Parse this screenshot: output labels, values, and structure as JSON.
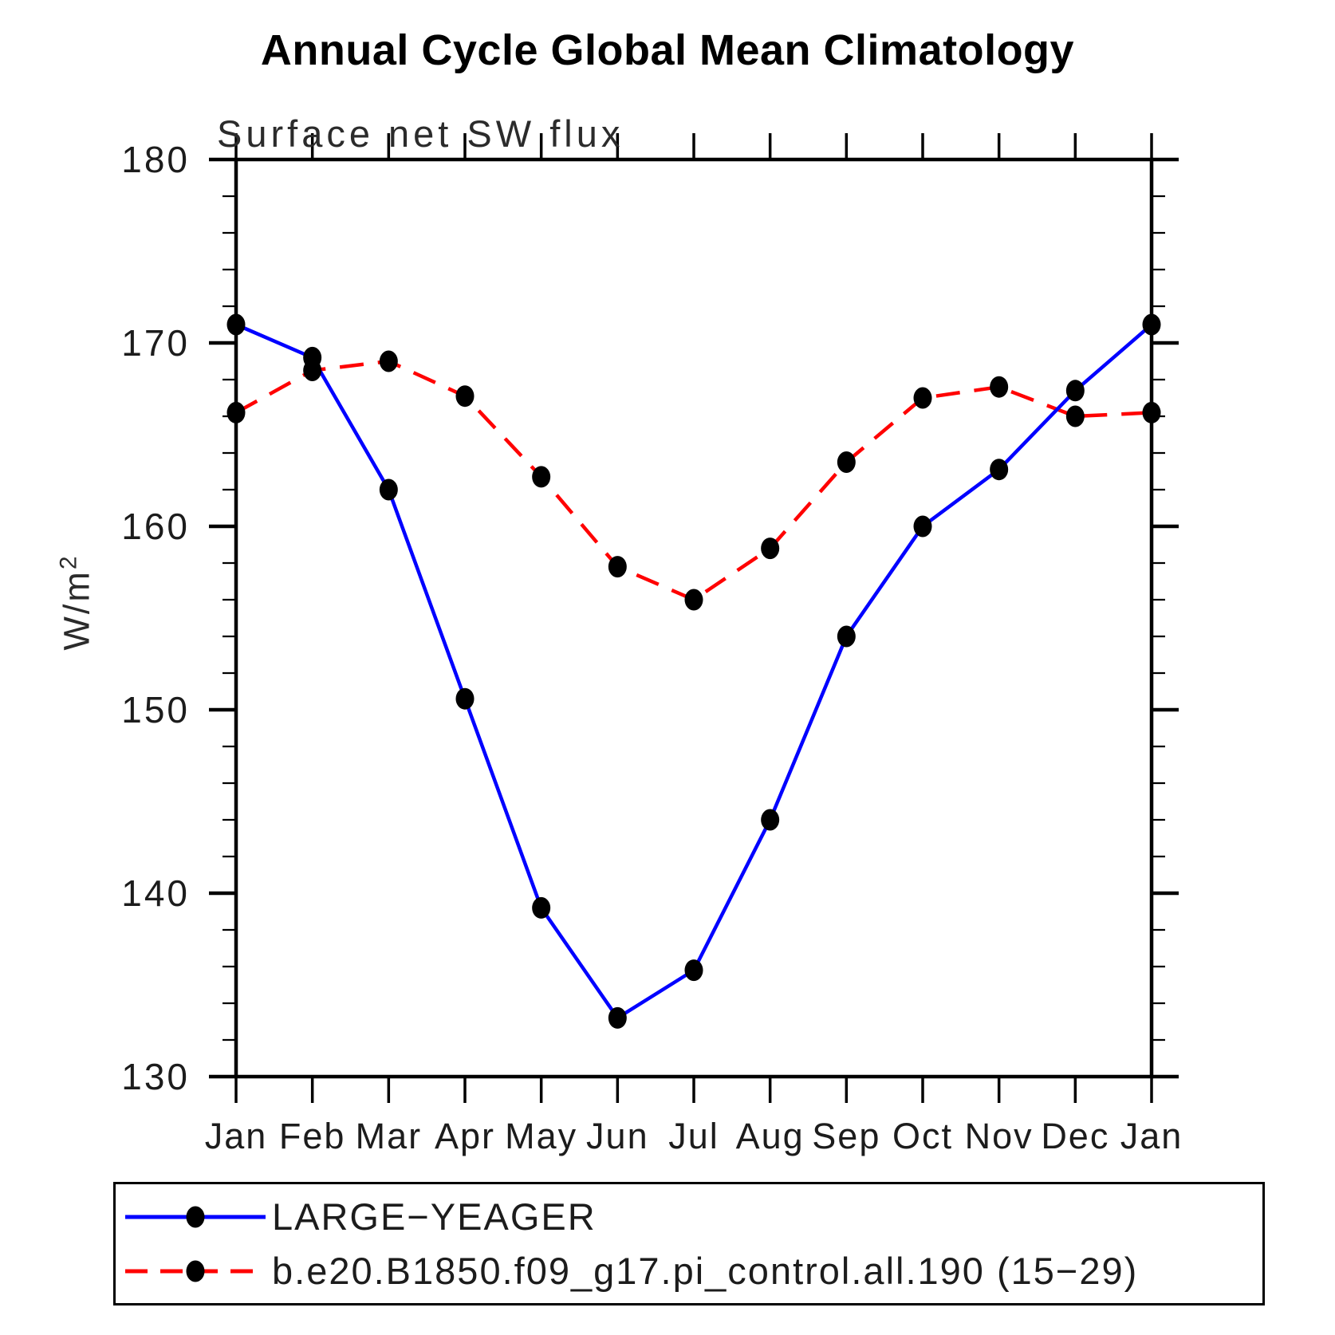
{
  "title": "Annual Cycle Global Mean Climatology",
  "subtitle": "Surface net SW flux",
  "y_axis": {
    "label_base": "W/m",
    "label_exponent": "2",
    "tick_labels": [
      "130",
      "140",
      "150",
      "160",
      "170",
      "180"
    ]
  },
  "chart_data": {
    "type": "line",
    "title": "Annual Cycle Global Mean Climatology",
    "subtitle": "Surface net SW flux",
    "ylabel": "W/m^2",
    "xlabel": "",
    "categories": [
      "Jan",
      "Feb",
      "Mar",
      "Apr",
      "May",
      "Jun",
      "Jul",
      "Aug",
      "Sep",
      "Oct",
      "Nov",
      "Dec",
      "Jan"
    ],
    "ylim": [
      130,
      180
    ],
    "ytick_major": [
      130,
      140,
      150,
      160,
      170,
      180
    ],
    "ytick_minor_step": 2,
    "grid": false,
    "legend_position": "bottom-left-box",
    "series": [
      {
        "name": "LARGE−YEAGER",
        "color": "#0000ff",
        "line_style": "solid",
        "marker": "filled-circle",
        "marker_color": "#000000",
        "values": [
          171.0,
          169.2,
          162.0,
          150.6,
          139.2,
          133.2,
          135.8,
          144.0,
          154.0,
          160.0,
          163.1,
          167.4,
          171.0
        ]
      },
      {
        "name": "b.e20.B1850.f09_g17.pi_control.all.190 (15−29)",
        "color": "#ff0000",
        "line_style": "dashed",
        "marker": "filled-circle",
        "marker_color": "#000000",
        "values": [
          166.2,
          168.5,
          169.0,
          167.1,
          162.7,
          157.8,
          156.0,
          158.8,
          163.5,
          167.0,
          167.6,
          166.0,
          166.2
        ]
      }
    ]
  }
}
